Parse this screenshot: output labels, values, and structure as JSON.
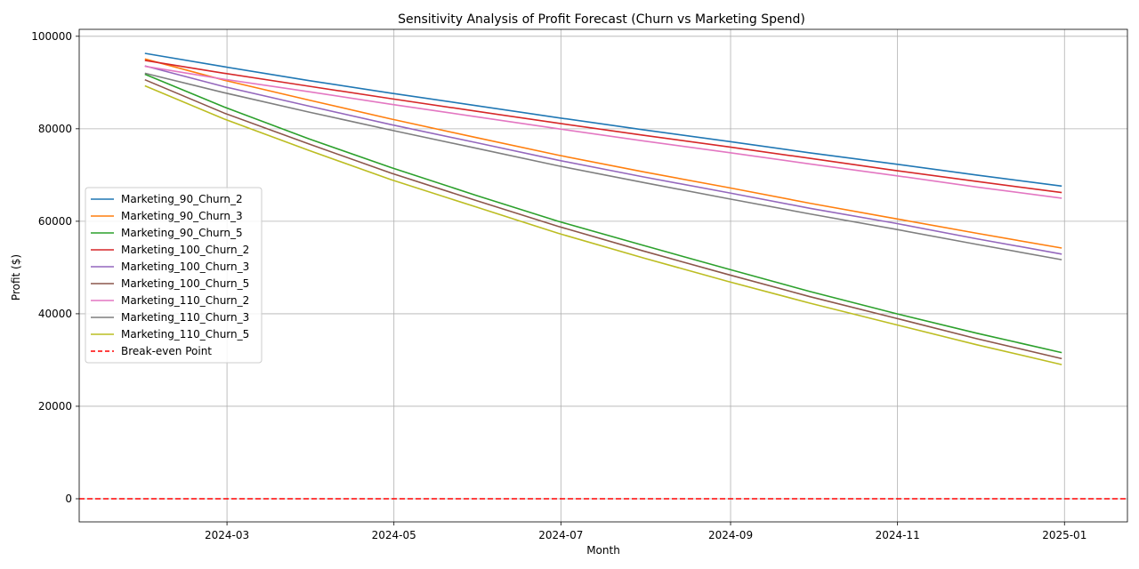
{
  "chart_data": {
    "type": "line",
    "title": "Sensitivity Analysis of Profit Forecast (Churn vs Marketing Spend)",
    "xlabel": "Month",
    "ylabel": "Profit ($)",
    "x": [
      "2024-01-31",
      "2024-02-29",
      "2024-03-31",
      "2024-04-30",
      "2024-05-31",
      "2024-06-30",
      "2024-07-31",
      "2024-08-31",
      "2024-09-30",
      "2024-10-31",
      "2024-11-30",
      "2024-12-31"
    ],
    "xlim": [
      "2024-01-07",
      "2025-01-24"
    ],
    "ylim": [
      -5000,
      101500
    ],
    "xticks": [
      {
        "value": "2024-03-01",
        "label": "2024-03"
      },
      {
        "value": "2024-05-01",
        "label": "2024-05"
      },
      {
        "value": "2024-07-01",
        "label": "2024-07"
      },
      {
        "value": "2024-09-01",
        "label": "2024-09"
      },
      {
        "value": "2024-11-01",
        "label": "2024-11"
      },
      {
        "value": "2025-01-01",
        "label": "2025-01"
      }
    ],
    "yticks": [
      0,
      20000,
      40000,
      60000,
      80000,
      100000
    ],
    "grid": true,
    "legend_position": "center-left",
    "series": [
      {
        "name": "Marketing_90_Churn_2",
        "color": "#1f77b4",
        "values": [
          96300,
          93400,
          90400,
          87700,
          85000,
          82400,
          79800,
          77300,
          74800,
          72400,
          70000,
          67600
        ]
      },
      {
        "name": "Marketing_90_Churn_3",
        "color": "#ff7f0e",
        "values": [
          95100,
          90500,
          86200,
          82100,
          78100,
          74300,
          70700,
          67300,
          63900,
          60600,
          57400,
          54200
        ]
      },
      {
        "name": "Marketing_90_Churn_5",
        "color": "#2ca02c",
        "values": [
          91800,
          84700,
          77800,
          71600,
          65600,
          60000,
          54800,
          49700,
          44800,
          40100,
          35800,
          31600
        ]
      },
      {
        "name": "Marketing_100_Churn_2",
        "color": "#d62728",
        "values": [
          94800,
          92000,
          89200,
          86500,
          83800,
          81200,
          78600,
          76100,
          73600,
          71000,
          68600,
          66200
        ]
      },
      {
        "name": "Marketing_100_Churn_3",
        "color": "#9467bd",
        "values": [
          93600,
          89100,
          84900,
          80900,
          77000,
          73200,
          69600,
          66200,
          62800,
          59600,
          56200,
          52900
        ]
      },
      {
        "name": "Marketing_100_Churn_5",
        "color": "#8c564b",
        "values": [
          90600,
          83400,
          76700,
          70400,
          64500,
          58900,
          53600,
          48500,
          43700,
          39100,
          34600,
          30300
        ]
      },
      {
        "name": "Marketing_110_Churn_2",
        "color": "#e377c2",
        "values": [
          93500,
          90700,
          88000,
          85300,
          82600,
          80000,
          77400,
          74900,
          72400,
          69900,
          67400,
          65000
        ]
      },
      {
        "name": "Marketing_110_Churn_3",
        "color": "#7f7f7f",
        "values": [
          92000,
          87800,
          83600,
          79700,
          75800,
          72000,
          68400,
          64900,
          61600,
          58300,
          55000,
          51700
        ]
      },
      {
        "name": "Marketing_110_Churn_5",
        "color": "#bcbd22",
        "values": [
          89300,
          82100,
          75300,
          69000,
          63100,
          57400,
          52100,
          47000,
          42300,
          37700,
          33300,
          29000
        ]
      }
    ],
    "reference_line": {
      "name": "Break-even Point",
      "value": 0,
      "color": "#ff0000",
      "style": "dashed"
    }
  }
}
